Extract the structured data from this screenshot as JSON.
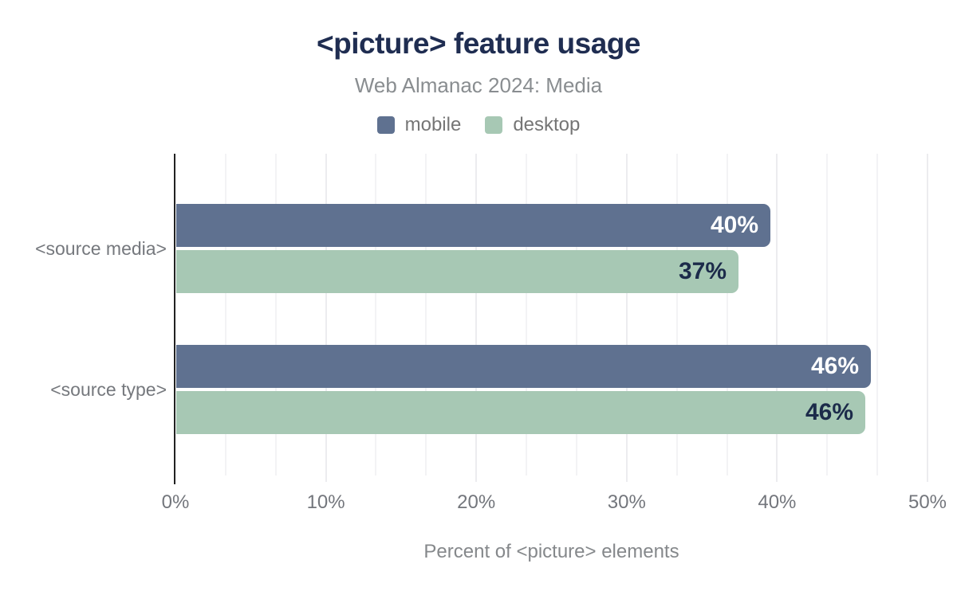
{
  "header": {
    "title": "<picture> feature usage",
    "subtitle": "Web Almanac 2024: Media"
  },
  "legend": {
    "items": [
      {
        "label": "mobile",
        "color": "#5f7190"
      },
      {
        "label": "desktop",
        "color": "#a7c8b4"
      }
    ]
  },
  "axis": {
    "x_ticks": [
      "0%",
      "10%",
      "20%",
      "30%",
      "40%",
      "50%"
    ],
    "x_title": "Percent of <picture> elements"
  },
  "chart_data": {
    "type": "bar",
    "orientation": "horizontal",
    "title": "<picture> feature usage",
    "subtitle": "Web Almanac 2024: Media",
    "xlabel": "Percent of <picture> elements",
    "categories": [
      "<source media>",
      "<source type>"
    ],
    "series": [
      {
        "name": "mobile",
        "color": "#5f7190",
        "label_color": "#ffffff",
        "values": [
          39.5,
          46.2
        ],
        "value_labels": [
          "40%",
          "46%"
        ]
      },
      {
        "name": "desktop",
        "color": "#a7c8b4",
        "label_color": "#1c2b4a",
        "values": [
          37.4,
          45.8
        ],
        "value_labels": [
          "37%",
          "46%"
        ]
      }
    ],
    "xlim": [
      0,
      50
    ],
    "x_tick_interval": 10,
    "minor_grid_divisions": 3,
    "grid": "vertical minor gridlines on, horizontal off",
    "legend_position": "top",
    "value_labels_position": "inside-end"
  },
  "colors": {
    "title": "#1f2d51",
    "subtitle": "#898d90",
    "axis_labels": "#73767c",
    "category_labels": "#75787d",
    "axis_line": "#212121",
    "gridline_minor": "#f3f3f5",
    "gridline_major": "#ececef",
    "background": "#ffffff"
  }
}
